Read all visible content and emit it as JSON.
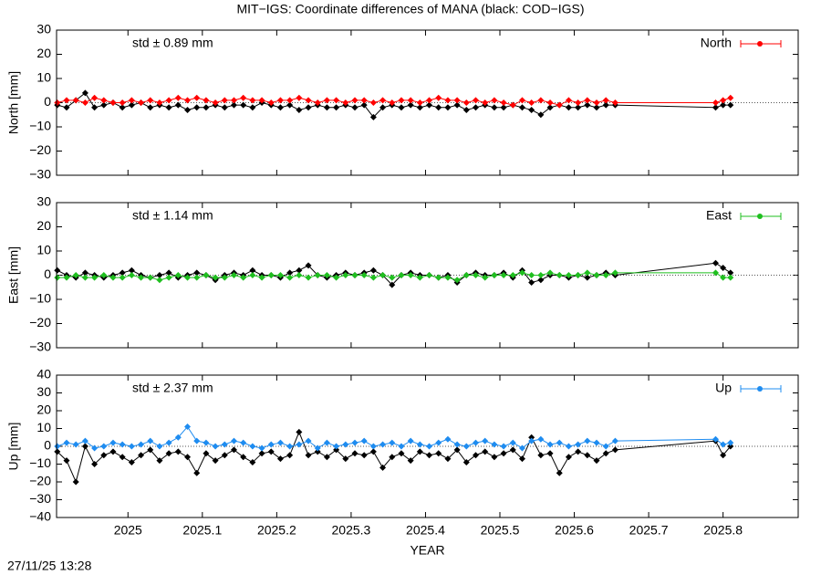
{
  "title": "MIT−IGS: Coordinate differences of MANA (black: COD−IGS)",
  "timestamp": "27/11/25 13:28",
  "chart_data": [
    {
      "type": "line",
      "ylabel": "North [mm]",
      "annotation": "std ± 0.89 mm",
      "annotation_color": "#ff0000",
      "legend": "top-right",
      "zero_line": true,
      "x": [
        2024.905,
        2024.9175,
        2024.93,
        2024.9425,
        2024.955,
        2024.9675,
        2024.98,
        2024.9925,
        2025.005,
        2025.0175,
        2025.03,
        2025.0425,
        2025.055,
        2025.0675,
        2025.08,
        2025.0925,
        2025.105,
        2025.1175,
        2025.13,
        2025.1425,
        2025.155,
        2025.1675,
        2025.18,
        2025.1925,
        2025.205,
        2025.2175,
        2025.23,
        2025.2425,
        2025.255,
        2025.2675,
        2025.28,
        2025.2925,
        2025.305,
        2025.3175,
        2025.33,
        2025.3425,
        2025.355,
        2025.3675,
        2025.38,
        2025.3925,
        2025.405,
        2025.4175,
        2025.43,
        2025.4425,
        2025.455,
        2025.4675,
        2025.48,
        2025.4925,
        2025.505,
        2025.5175,
        2025.53,
        2025.5425,
        2025.555,
        2025.5675,
        2025.58,
        2025.5925,
        2025.605,
        2025.6175,
        2025.63,
        2025.6425,
        2025.655,
        2025.79,
        2025.8,
        2025.81
      ],
      "xlim": [
        2024.904,
        2025.901
      ],
      "xticks": [
        2025,
        2025.1,
        2025.2,
        2025.3,
        2025.4,
        2025.5,
        2025.6,
        2025.7,
        2025.8
      ],
      "ylim": [
        -30,
        30
      ],
      "yticks": [
        {
          "value": -30,
          "label": "−30"
        },
        {
          "value": -20,
          "label": "−20"
        },
        {
          "value": -10,
          "label": "−10"
        },
        0,
        10,
        20,
        30
      ],
      "series": [
        {
          "color": "#000000",
          "values": [
            -1,
            -2,
            1,
            4,
            -2,
            -1,
            0,
            -2,
            -1,
            0,
            -2,
            -1,
            -2,
            -1,
            -3,
            -2,
            -2,
            -1,
            -2,
            -1,
            -1,
            -2,
            0,
            -1,
            -2,
            -1,
            -3,
            -2,
            -1,
            -2,
            -2,
            -1,
            -2,
            -1,
            -6,
            -2,
            -1,
            -2,
            -1,
            -2,
            -1,
            -2,
            -2,
            -1,
            -3,
            -2,
            -1,
            -2,
            -2,
            -1,
            -2,
            -3,
            -5,
            -2,
            -1,
            -2,
            -2,
            -1,
            -2,
            -1,
            -1,
            -2,
            -1,
            -1
          ]
        },
        {
          "name": "North",
          "color": "#ff0000",
          "values": [
            0,
            1,
            1,
            0,
            2,
            1,
            0,
            0,
            1,
            0,
            1,
            0,
            1,
            2,
            1,
            2,
            1,
            0,
            1,
            1,
            2,
            1,
            1,
            0,
            1,
            1,
            2,
            1,
            0,
            1,
            1,
            0,
            1,
            1,
            0,
            1,
            0,
            1,
            1,
            0,
            1,
            2,
            1,
            1,
            0,
            1,
            0,
            1,
            0,
            -1,
            1,
            0,
            1,
            0,
            -1,
            1,
            0,
            1,
            0,
            1,
            0,
            0,
            1,
            2
          ]
        }
      ]
    },
    {
      "type": "line",
      "ylabel": "East [mm]",
      "annotation": "std ± 1.14 mm",
      "annotation_color": "#1fbf1f",
      "legend": "top-right",
      "zero_line": true,
      "x": [
        2024.905,
        2024.9175,
        2024.93,
        2024.9425,
        2024.955,
        2024.9675,
        2024.98,
        2024.9925,
        2025.005,
        2025.0175,
        2025.03,
        2025.0425,
        2025.055,
        2025.0675,
        2025.08,
        2025.0925,
        2025.105,
        2025.1175,
        2025.13,
        2025.1425,
        2025.155,
        2025.1675,
        2025.18,
        2025.1925,
        2025.205,
        2025.2175,
        2025.23,
        2025.2425,
        2025.255,
        2025.2675,
        2025.28,
        2025.2925,
        2025.305,
        2025.3175,
        2025.33,
        2025.3425,
        2025.355,
        2025.3675,
        2025.38,
        2025.3925,
        2025.405,
        2025.4175,
        2025.43,
        2025.4425,
        2025.455,
        2025.4675,
        2025.48,
        2025.4925,
        2025.505,
        2025.5175,
        2025.53,
        2025.5425,
        2025.555,
        2025.5675,
        2025.58,
        2025.5925,
        2025.605,
        2025.6175,
        2025.63,
        2025.6425,
        2025.655,
        2025.79,
        2025.8,
        2025.81
      ],
      "xlim": [
        2024.904,
        2025.901
      ],
      "xticks": [
        2025,
        2025.1,
        2025.2,
        2025.3,
        2025.4,
        2025.5,
        2025.6,
        2025.7,
        2025.8
      ],
      "ylim": [
        -30,
        30
      ],
      "yticks": [
        {
          "value": -30,
          "label": "−30"
        },
        {
          "value": -20,
          "label": "−20"
        },
        {
          "value": -10,
          "label": "−10"
        },
        0,
        10,
        20,
        30
      ],
      "series": [
        {
          "color": "#000000",
          "values": [
            2,
            0,
            -1,
            1,
            0,
            -1,
            0,
            1,
            2,
            0,
            -1,
            0,
            1,
            -1,
            0,
            1,
            0,
            -2,
            0,
            1,
            0,
            2,
            0,
            0,
            -1,
            1,
            2,
            4,
            0,
            -1,
            0,
            1,
            0,
            1,
            2,
            0,
            -4,
            0,
            1,
            0,
            0,
            -1,
            0,
            -3,
            0,
            1,
            0,
            0,
            1,
            -1,
            2,
            -3,
            -2,
            0,
            0,
            -1,
            0,
            -1,
            0,
            1,
            0,
            5,
            3,
            1
          ]
        },
        {
          "name": "East",
          "color": "#1fbf1f",
          "values": [
            -1,
            -1,
            0,
            -1,
            -1,
            0,
            -1,
            -1,
            0,
            -1,
            -1,
            -2,
            -1,
            0,
            -1,
            -1,
            0,
            -1,
            -1,
            0,
            -1,
            0,
            -1,
            0,
            0,
            -1,
            0,
            -1,
            0,
            0,
            -1,
            0,
            0,
            0,
            -1,
            0,
            -1,
            0,
            0,
            -1,
            0,
            -1,
            -1,
            -2,
            0,
            0,
            -1,
            0,
            0,
            0,
            1,
            0,
            0,
            1,
            0,
            0,
            0,
            1,
            0,
            0,
            1,
            1,
            -1,
            -1
          ]
        }
      ]
    },
    {
      "type": "line",
      "ylabel": "Up [mm]",
      "annotation": "std ± 2.37 mm",
      "annotation_color": "#1e8cf0",
      "legend": "top-right",
      "zero_line": true,
      "xlabel": "YEAR",
      "x": [
        2024.905,
        2024.9175,
        2024.93,
        2024.9425,
        2024.955,
        2024.9675,
        2024.98,
        2024.9925,
        2025.005,
        2025.0175,
        2025.03,
        2025.0425,
        2025.055,
        2025.0675,
        2025.08,
        2025.0925,
        2025.105,
        2025.1175,
        2025.13,
        2025.1425,
        2025.155,
        2025.1675,
        2025.18,
        2025.1925,
        2025.205,
        2025.2175,
        2025.23,
        2025.2425,
        2025.255,
        2025.2675,
        2025.28,
        2025.2925,
        2025.305,
        2025.3175,
        2025.33,
        2025.3425,
        2025.355,
        2025.3675,
        2025.38,
        2025.3925,
        2025.405,
        2025.4175,
        2025.43,
        2025.4425,
        2025.455,
        2025.4675,
        2025.48,
        2025.4925,
        2025.505,
        2025.5175,
        2025.53,
        2025.5425,
        2025.555,
        2025.5675,
        2025.58,
        2025.5925,
        2025.605,
        2025.6175,
        2025.63,
        2025.6425,
        2025.655,
        2025.79,
        2025.8,
        2025.81
      ],
      "xlim": [
        2024.904,
        2025.901
      ],
      "xticks": [
        2025,
        2025.1,
        2025.2,
        2025.3,
        2025.4,
        2025.5,
        2025.6,
        2025.7,
        2025.8
      ],
      "ylim": [
        -40,
        40
      ],
      "yticks": [
        {
          "value": -40,
          "label": "−40"
        },
        {
          "value": -30,
          "label": "−30"
        },
        {
          "value": -20,
          "label": "−20"
        },
        {
          "value": -10,
          "label": "−10"
        },
        0,
        10,
        20,
        30,
        40
      ],
      "series": [
        {
          "color": "#000000",
          "values": [
            -3,
            -8,
            -20,
            0,
            -10,
            -5,
            -3,
            -6,
            -9,
            -5,
            -2,
            -8,
            -4,
            -3,
            -6,
            -15,
            -4,
            -8,
            -5,
            -2,
            -6,
            -9,
            -4,
            -3,
            -7,
            -5,
            8,
            -5,
            -3,
            -6,
            -2,
            -7,
            -4,
            -5,
            -3,
            -12,
            -6,
            -4,
            -8,
            -3,
            -5,
            -4,
            -7,
            -2,
            -9,
            -5,
            -3,
            -6,
            -4,
            -2,
            -7,
            5,
            -5,
            -4,
            -15,
            -6,
            -3,
            -5,
            -8,
            -4,
            -2,
            3,
            -5,
            0
          ]
        },
        {
          "name": "Up",
          "color": "#1e8cf0",
          "values": [
            0,
            2,
            1,
            3,
            -1,
            0,
            2,
            1,
            0,
            1,
            3,
            0,
            2,
            5,
            11,
            3,
            2,
            0,
            1,
            3,
            2,
            0,
            -1,
            1,
            2,
            0,
            1,
            3,
            -1,
            2,
            0,
            1,
            2,
            3,
            0,
            1,
            2,
            0,
            3,
            1,
            0,
            2,
            4,
            1,
            0,
            2,
            3,
            1,
            0,
            2,
            -1,
            3,
            4,
            1,
            2,
            0,
            1,
            3,
            2,
            0,
            3,
            4,
            1,
            2
          ]
        }
      ]
    }
  ]
}
